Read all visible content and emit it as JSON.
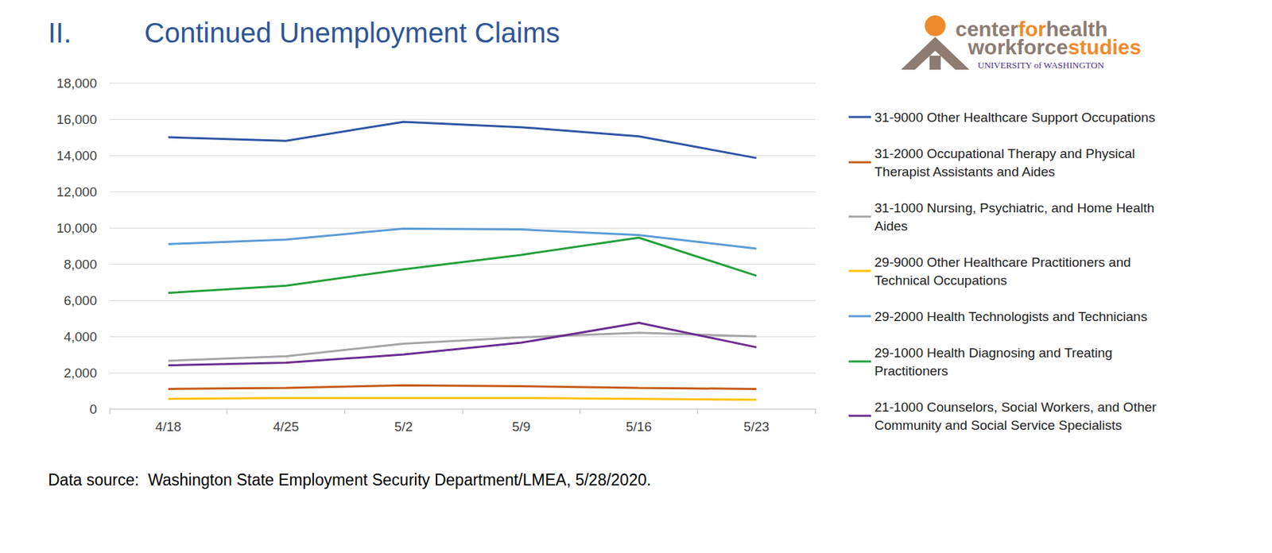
{
  "chart_data": {
    "type": "line",
    "section": "II.",
    "title": "Continued Unemployment Claims",
    "source": "Data source:  Washington State Employment Security Department/LMEA, 5/28/2020.",
    "logo": {
      "line1": [
        "center",
        "for",
        "health"
      ],
      "line2": [
        "workforce",
        "studies"
      ],
      "line3": "UNIVERSITY of WASHINGTON"
    },
    "categories": [
      "4/18",
      "4/25",
      "5/2",
      "5/9",
      "5/16",
      "5/23"
    ],
    "ylim": [
      0,
      18000
    ],
    "yticks": [
      0,
      {
        "value": 2000,
        "label": "2,000"
      },
      {
        "value": 4000,
        "label": "4,000"
      },
      {
        "value": 6000,
        "label": "6,000"
      },
      {
        "value": 8000,
        "label": "8,000"
      },
      {
        "value": 10000,
        "label": "10,000"
      },
      {
        "value": 12000,
        "label": "12,000"
      },
      {
        "value": 14000,
        "label": "14,000"
      },
      {
        "value": 16000,
        "label": "16,000"
      },
      {
        "value": 18000,
        "label": "18,000"
      }
    ],
    "grid": true,
    "legend": "right",
    "series": [
      {
        "name": "31-9000 Other Healthcare Support Occupations",
        "color": "#2F55A4",
        "values": [
          15000,
          14800,
          15850,
          15550,
          15050,
          13850
        ]
      },
      {
        "name": "31-2000 Occupational Therapy and Physical Therapist Assistants and Aides",
        "color": "#C55A11",
        "values": [
          1100,
          1150,
          1300,
          1250,
          1150,
          1100
        ]
      },
      {
        "name": "31-1000 Nursing, Psychiatric, and Home Health Aides",
        "color": "#A5A5A5",
        "values": [
          2650,
          2900,
          3600,
          3950,
          4200,
          4000
        ]
      },
      {
        "name": "29-9000 Other Healthcare Practitioners and Technical Occupations",
        "color": "#FFC000",
        "values": [
          550,
          600,
          600,
          600,
          550,
          500
        ]
      },
      {
        "name": "29-2000 Health Technologists and Technicians",
        "color": "#5B9BD5",
        "values": [
          9100,
          9350,
          9950,
          9900,
          9600,
          8850
        ]
      },
      {
        "name": "29-1000 Health Diagnosing and Treating Practitioners",
        "color": "#23A03A",
        "values": [
          6400,
          6800,
          7700,
          8500,
          9450,
          7350
        ]
      },
      {
        "name": "21-1000 Counselors, Social Workers, and Other Community and Social Service Specialists",
        "color": "#6A2D91",
        "values": [
          2400,
          2550,
          3000,
          3650,
          4750,
          3400
        ]
      }
    ]
  }
}
